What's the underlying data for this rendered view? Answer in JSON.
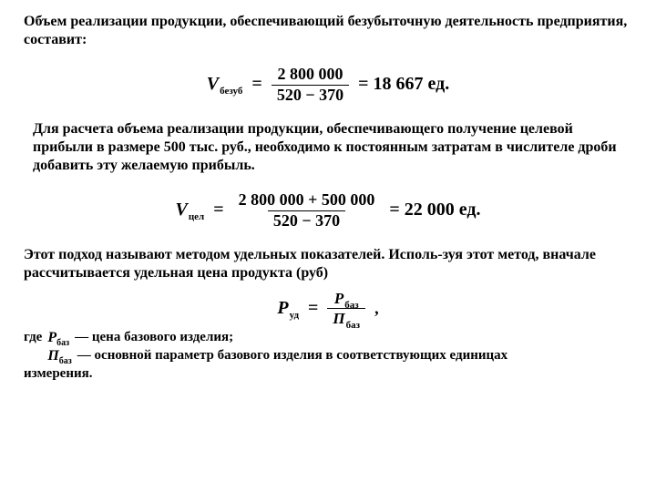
{
  "para1": "Объем реализации продукции, обеспечивающий безубыточную деятельность предприятия, составит:",
  "formula1": {
    "var_main": "V",
    "var_sub": "безуб",
    "numerator": "2 800 000",
    "denominator": "520 − 370",
    "result": "= 18 667 ед."
  },
  "para2": "Для расчета объема реализации продукции, обеспечивающего получение целевой прибыли в размере 500 тыс. руб., необходимо к постоянным затратам в числителе дроби добавить эту желаемую прибыль.",
  "formula2": {
    "var_main": "V",
    "var_sub": "цел",
    "numerator": "2 800 000 + 500 000",
    "denominator": "520 − 370",
    "result": "= 22 000 ед."
  },
  "para3": "Этот подход называют методом удельных показателей. Исполь-зуя этот метод, вначале рассчитывается удельная цена продукта (руб)",
  "formula3": {
    "var_main": "P",
    "var_sub": "уд",
    "num_main": "P",
    "num_sub": "баз",
    "den_main": "П",
    "den_sub": "баз"
  },
  "defs": {
    "where": "где",
    "d1_var_main": "P",
    "d1_var_sub": "баз",
    "d1_text": "— цена базового изделия;",
    "d2_var_main": "П",
    "d2_var_sub": "баз",
    "d2_text": "— основной параметр базового изделия в соответствующих единицах",
    "d2_text_line2": "измерения."
  }
}
